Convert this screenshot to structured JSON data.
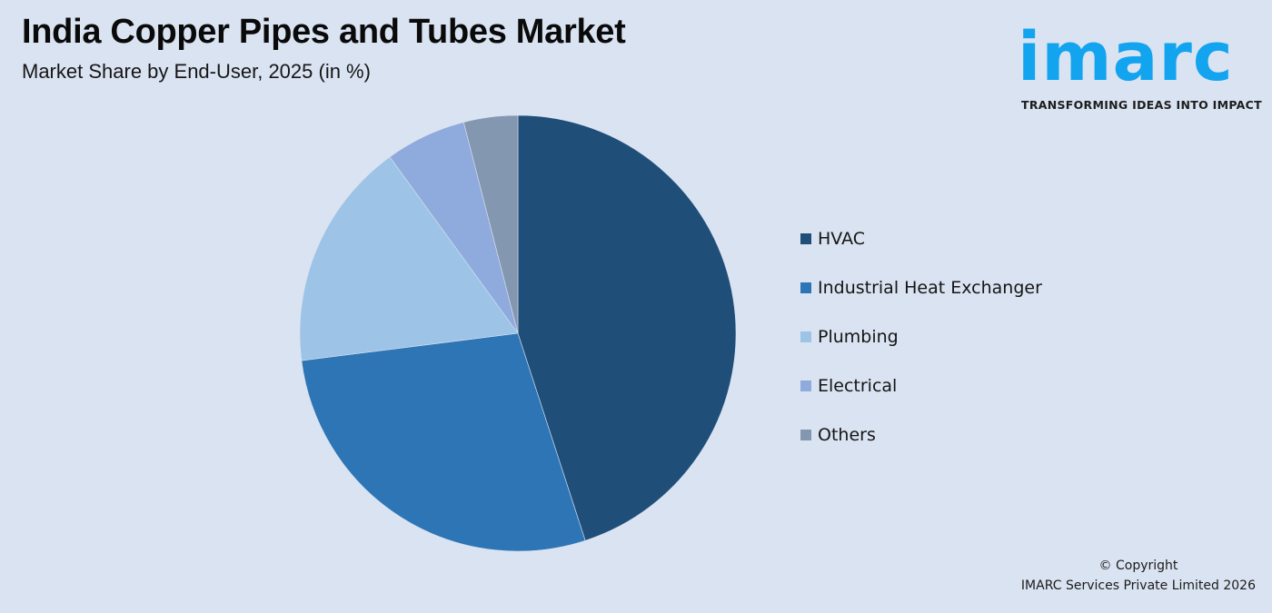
{
  "header": {
    "title": "India Copper Pipes and Tubes Market",
    "subtitle": "Market Share by End-User, 2025 (in %)"
  },
  "logo": {
    "wordmark": "imarc",
    "tagline": "TRANSFORMING IDEAS INTO IMPACT",
    "color": "#12a4ef"
  },
  "chart_data": {
    "type": "pie",
    "title": "India Copper Pipes and Tubes Market",
    "subtitle": "Market Share by End-User, 2025 (in %)",
    "categories": [
      "HVAC",
      "Industrial Heat Exchanger",
      "Plumbing",
      "Electrical",
      "Others"
    ],
    "values": [
      45,
      28,
      17,
      6,
      4
    ],
    "colors": [
      "#1f4e79",
      "#2e75b6",
      "#9dc3e6",
      "#8faadc",
      "#8497b0"
    ],
    "start_angle_deg": 0,
    "direction": "clockwise",
    "legend_position": "right",
    "data_labels": false
  },
  "legend": {
    "items": [
      {
        "label": "HVAC",
        "color": "#1f4e79"
      },
      {
        "label": "Industrial Heat Exchanger",
        "color": "#2e75b6"
      },
      {
        "label": "Plumbing",
        "color": "#9dc3e6"
      },
      {
        "label": "Electrical",
        "color": "#8faadc"
      },
      {
        "label": "Others",
        "color": "#8497b0"
      }
    ]
  },
  "footer": {
    "copyright_line1": "© Copyright",
    "copyright_line2": "IMARC Services Private Limited 2026"
  }
}
